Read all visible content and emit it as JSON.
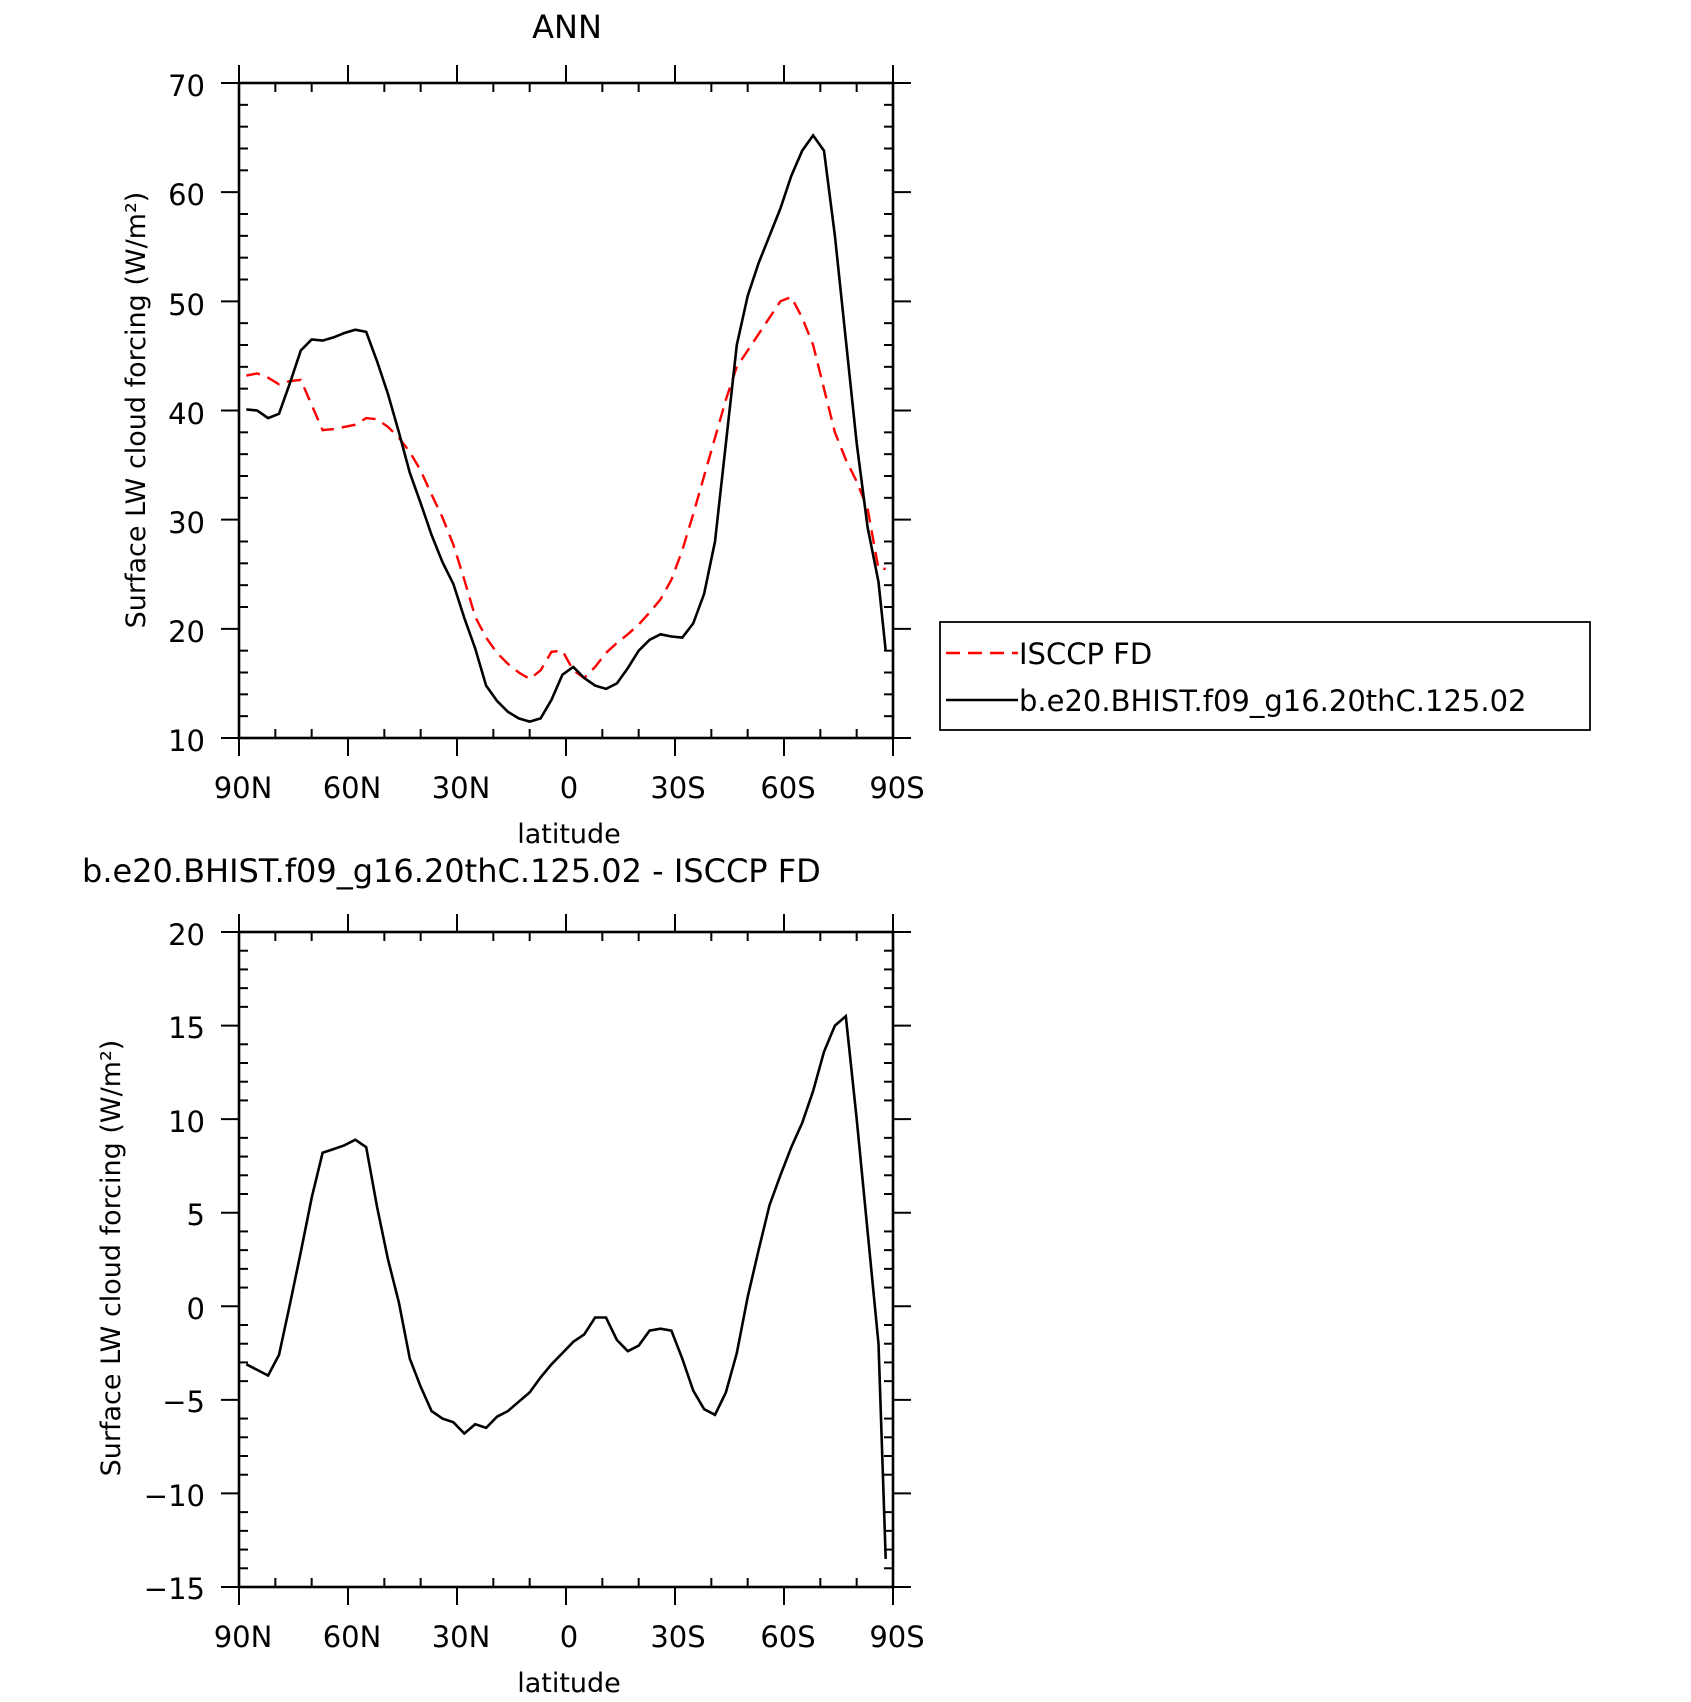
{
  "chart_data": [
    {
      "type": "line",
      "title": "ANN",
      "xlabel": "latitude",
      "ylabel": "Surface LW cloud forcing (W/m²)",
      "xlim": [
        90,
        -90
      ],
      "ylim": [
        10,
        70
      ],
      "xticks": [
        90,
        60,
        30,
        0,
        -30,
        -60,
        -90
      ],
      "xtick_labels": [
        "90N",
        "60N",
        "30N",
        "0",
        "30S",
        "60S",
        "90S"
      ],
      "yticks": [
        10,
        20,
        30,
        40,
        50,
        60,
        70
      ],
      "ytick_labels": [
        "10",
        "20",
        "30",
        "40",
        "50",
        "60",
        "70"
      ],
      "legend": "outside-right",
      "series": [
        {
          "name": "ISCCP FD",
          "color": "#ff0000",
          "style": "dashed",
          "x": [
            88,
            85,
            82,
            79,
            76,
            73,
            70,
            67,
            64,
            61,
            58,
            55,
            52,
            49,
            46,
            43,
            40,
            37,
            34,
            31,
            28,
            25,
            22,
            19,
            16,
            13,
            10,
            7,
            4,
            1,
            -2,
            -5,
            -8,
            -11,
            -14,
            -17,
            -20,
            -23,
            -26,
            -29,
            -32,
            -35,
            -38,
            -41,
            -44,
            -47,
            -50,
            -53,
            -56,
            -59,
            -62,
            -65,
            -68,
            -71,
            -74,
            -77,
            -80,
            -83,
            -86,
            -88
          ],
          "y": [
            43.2,
            43.4,
            43.0,
            42.4,
            42.7,
            42.8,
            40.5,
            38.2,
            38.3,
            38.5,
            38.7,
            39.3,
            39.2,
            38.5,
            37.5,
            36.2,
            34.5,
            32.3,
            30.2,
            27.7,
            24.5,
            21.1,
            19.2,
            17.8,
            16.8,
            16.0,
            15.4,
            16.2,
            17.9,
            18.0,
            16.2,
            15.5,
            16.5,
            17.8,
            18.7,
            19.5,
            20.4,
            21.5,
            22.7,
            24.5,
            27.2,
            30.5,
            34.0,
            37.5,
            41.0,
            44.0,
            45.5,
            47.0,
            48.5,
            50.0,
            50.4,
            48.5,
            46.0,
            42.0,
            38.0,
            35.5,
            33.5,
            31.0,
            25.5,
            25.5
          ]
        },
        {
          "name": "b.e20.BHIST.f09_g16.20thC.125.02",
          "color": "#000000",
          "style": "solid",
          "x": [
            88,
            85,
            82,
            79,
            76,
            73,
            70,
            67,
            64,
            61,
            58,
            55,
            52,
            49,
            46,
            43,
            40,
            37,
            34,
            31,
            28,
            25,
            22,
            19,
            16,
            13,
            10,
            7,
            4,
            1,
            -2,
            -5,
            -8,
            -11,
            -14,
            -17,
            -20,
            -23,
            -26,
            -29,
            -32,
            -35,
            -38,
            -41,
            -44,
            -47,
            -50,
            -53,
            -56,
            -59,
            -62,
            -65,
            -68,
            -71,
            -74,
            -77,
            -80,
            -83,
            -86,
            -88
          ],
          "y": [
            40.1,
            40.0,
            39.3,
            39.7,
            42.5,
            45.5,
            46.5,
            46.4,
            46.7,
            47.1,
            47.4,
            47.2,
            44.5,
            41.5,
            38.0,
            34.3,
            31.5,
            28.6,
            26.1,
            24.1,
            21.0,
            18.2,
            14.8,
            13.4,
            12.4,
            11.8,
            11.5,
            11.8,
            13.5,
            15.8,
            16.5,
            15.5,
            14.8,
            14.5,
            15.0,
            16.4,
            18.0,
            19.0,
            19.5,
            19.3,
            19.2,
            20.5,
            23.2,
            28.0,
            37.0,
            46.0,
            50.5,
            53.5,
            56.0,
            58.5,
            61.5,
            63.8,
            65.2,
            63.8,
            56.0,
            46.5,
            37.0,
            29.3,
            24.3,
            18.0
          ]
        }
      ]
    },
    {
      "type": "line",
      "title": "b.e20.BHIST.f09_g16.20thC.125.02 - ISCCP FD",
      "xlabel": "latitude",
      "ylabel": "Surface LW cloud forcing (W/m²)",
      "xlim": [
        90,
        -90
      ],
      "ylim": [
        -15,
        20
      ],
      "xticks": [
        90,
        60,
        30,
        0,
        -30,
        -60,
        -90
      ],
      "xtick_labels": [
        "90N",
        "60N",
        "30N",
        "0",
        "30S",
        "60S",
        "90S"
      ],
      "yticks": [
        -15,
        -10,
        -5,
        0,
        5,
        10,
        15,
        20
      ],
      "ytick_labels": [
        "−15",
        "−10",
        "−5",
        "0",
        "5",
        "10",
        "15",
        "20"
      ],
      "series": [
        {
          "color": "#000000",
          "style": "solid",
          "x": [
            88,
            85,
            82,
            79,
            76,
            73,
            70,
            67,
            64,
            61,
            58,
            55,
            52,
            49,
            46,
            43,
            40,
            37,
            34,
            31,
            28,
            25,
            22,
            19,
            16,
            13,
            10,
            7,
            4,
            1,
            -2,
            -5,
            -8,
            -11,
            -14,
            -17,
            -20,
            -23,
            -26,
            -29,
            -32,
            -35,
            -38,
            -41,
            -44,
            -47,
            -50,
            -53,
            -56,
            -59,
            -62,
            -65,
            -68,
            -71,
            -74,
            -77,
            -80,
            -83,
            -86,
            -88
          ],
          "y": [
            -3.1,
            -3.4,
            -3.7,
            -2.6,
            0.1,
            2.9,
            5.8,
            8.2,
            8.4,
            8.6,
            8.9,
            8.5,
            5.3,
            2.5,
            0.2,
            -2.8,
            -4.3,
            -5.6,
            -6.0,
            -6.2,
            -6.8,
            -6.3,
            -6.5,
            -5.9,
            -5.6,
            -5.1,
            -4.6,
            -3.8,
            -3.1,
            -2.5,
            -1.9,
            -1.5,
            -0.6,
            -0.6,
            -1.8,
            -2.4,
            -2.1,
            -1.3,
            -1.2,
            -1.3,
            -2.8,
            -4.5,
            -5.5,
            -5.8,
            -4.6,
            -2.5,
            0.5,
            3.0,
            5.4,
            7.0,
            8.5,
            9.8,
            11.5,
            13.6,
            15.0,
            15.5,
            10.0,
            4.0,
            -2.0,
            -13.5
          ]
        }
      ]
    }
  ]
}
